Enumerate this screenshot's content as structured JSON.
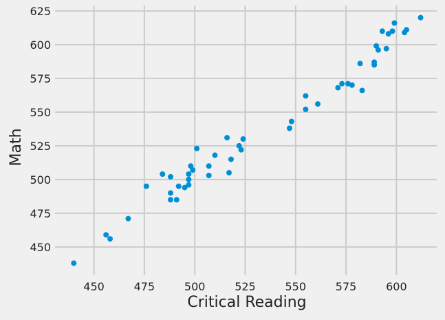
{
  "chart_data": {
    "type": "scatter",
    "title": "",
    "xlabel": "Critical Reading",
    "ylabel": "Math",
    "xlim": [
      430.7,
      620
    ],
    "ylim": [
      429,
      629
    ],
    "xticks": [
      450,
      475,
      500,
      525,
      550,
      575,
      600
    ],
    "yticks": [
      450,
      475,
      500,
      525,
      550,
      575,
      600,
      625
    ],
    "grid": true,
    "marker_color": "#008fd5",
    "background": "#f0f0f0",
    "grid_color": "#cbcbcb",
    "points": [
      [
        440,
        438
      ],
      [
        456,
        459
      ],
      [
        458,
        456
      ],
      [
        467,
        471
      ],
      [
        476,
        495
      ],
      [
        484,
        504
      ],
      [
        488,
        502
      ],
      [
        488,
        490
      ],
      [
        488,
        485
      ],
      [
        491,
        485
      ],
      [
        492,
        495
      ],
      [
        495,
        494
      ],
      [
        497,
        504
      ],
      [
        497,
        500
      ],
      [
        497,
        496
      ],
      [
        498,
        510
      ],
      [
        499,
        507
      ],
      [
        501,
        523
      ],
      [
        507,
        510
      ],
      [
        507,
        503
      ],
      [
        510,
        518
      ],
      [
        516,
        531
      ],
      [
        517,
        505
      ],
      [
        518,
        515
      ],
      [
        522,
        525
      ],
      [
        523,
        522
      ],
      [
        524,
        530
      ],
      [
        547,
        538
      ],
      [
        548,
        543
      ],
      [
        555,
        552
      ],
      [
        555,
        562
      ],
      [
        561,
        556
      ],
      [
        571,
        568
      ],
      [
        573,
        571
      ],
      [
        576,
        571
      ],
      [
        578,
        570
      ],
      [
        582,
        586
      ],
      [
        583,
        566
      ],
      [
        589,
        587
      ],
      [
        589,
        585
      ],
      [
        590,
        599
      ],
      [
        591,
        596
      ],
      [
        593,
        610
      ],
      [
        595,
        597
      ],
      [
        596,
        608
      ],
      [
        598,
        610
      ],
      [
        599,
        616
      ],
      [
        604,
        609
      ],
      [
        605,
        611
      ],
      [
        612,
        620
      ]
    ]
  }
}
